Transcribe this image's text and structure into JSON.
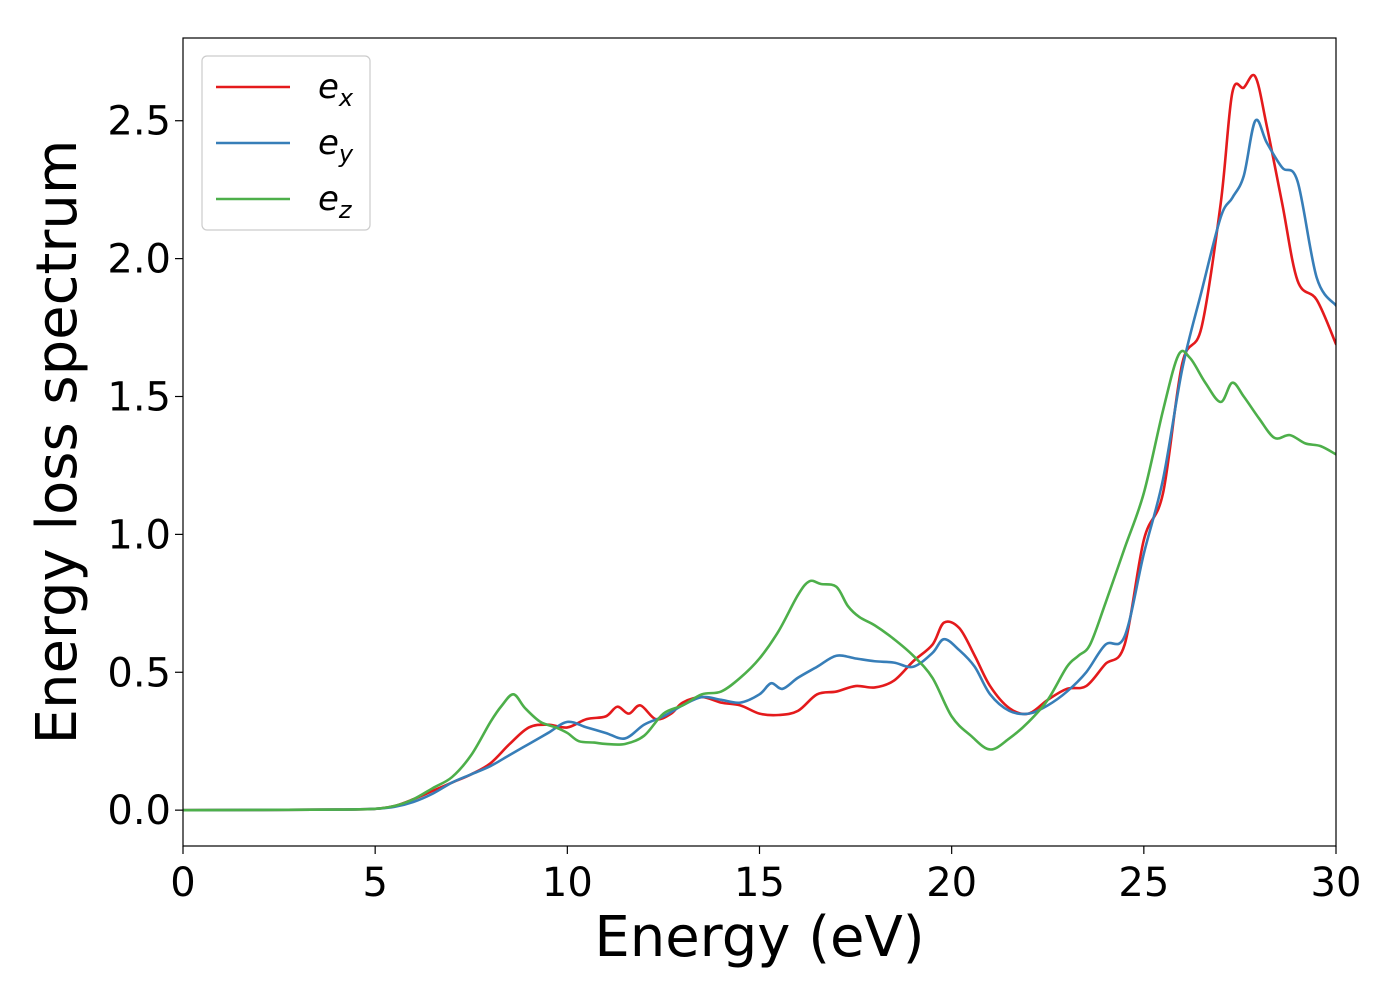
{
  "chart_data": {
    "type": "line",
    "title": "",
    "xlabel": "Energy (eV)",
    "ylabel": "Energy loss spectrum",
    "xlim": [
      0,
      30
    ],
    "ylim": [
      -0.13,
      2.8
    ],
    "xticks": [
      0,
      5,
      10,
      15,
      20,
      25,
      30
    ],
    "xtick_labels": [
      "0",
      "5",
      "10",
      "15",
      "20",
      "25",
      "30"
    ],
    "yticks": [
      0.0,
      0.5,
      1.0,
      1.5,
      2.0,
      2.5
    ],
    "ytick_labels": [
      "0.0",
      "0.5",
      "1.0",
      "1.5",
      "2.0",
      "2.5"
    ],
    "grid": false,
    "legend_position": "top-left",
    "series": [
      {
        "name": "e_x",
        "label_base": "e",
        "label_sub": "x",
        "color": "#e41a1c",
        "x": [
          0,
          4,
          5,
          5.5,
          6,
          6.5,
          7,
          7.5,
          8,
          8.5,
          9,
          9.5,
          10,
          10.5,
          11,
          11.3,
          11.6,
          11.9,
          12.3,
          12.7,
          13,
          13.5,
          14,
          14.5,
          15,
          15.5,
          16,
          16.5,
          17,
          17.5,
          18,
          18.5,
          19,
          19.5,
          19.8,
          20.2,
          20.6,
          21,
          21.5,
          22,
          22.5,
          23,
          23.5,
          24,
          24.5,
          25,
          25.5,
          26,
          26.5,
          27,
          27.3,
          27.6,
          27.9,
          28.2,
          28.6,
          29,
          29.5,
          30
        ],
        "y": [
          0,
          0.002,
          0.005,
          0.015,
          0.04,
          0.07,
          0.1,
          0.13,
          0.17,
          0.24,
          0.3,
          0.31,
          0.3,
          0.33,
          0.34,
          0.375,
          0.35,
          0.38,
          0.33,
          0.35,
          0.39,
          0.41,
          0.39,
          0.38,
          0.35,
          0.345,
          0.36,
          0.42,
          0.43,
          0.45,
          0.445,
          0.47,
          0.54,
          0.6,
          0.68,
          0.66,
          0.56,
          0.45,
          0.37,
          0.35,
          0.4,
          0.44,
          0.45,
          0.53,
          0.6,
          0.98,
          1.15,
          1.62,
          1.75,
          2.2,
          2.6,
          2.62,
          2.66,
          2.48,
          2.2,
          1.92,
          1.85,
          1.69
        ]
      },
      {
        "name": "e_y",
        "label_base": "e",
        "label_sub": "y",
        "color": "#377eb8",
        "x": [
          0,
          4,
          5,
          5.5,
          6,
          6.5,
          7,
          7.5,
          8,
          8.5,
          9,
          9.5,
          10,
          10.5,
          11,
          11.5,
          12,
          12.5,
          13,
          13.5,
          14,
          14.5,
          15,
          15.3,
          15.6,
          16,
          16.5,
          17,
          17.5,
          18,
          18.5,
          19,
          19.5,
          19.8,
          20.2,
          20.6,
          21,
          21.5,
          22,
          22.5,
          23,
          23.5,
          24,
          24.5,
          25,
          25.5,
          26,
          26.5,
          27,
          27.3,
          27.6,
          27.9,
          28.2,
          28.6,
          29,
          29.5,
          30
        ],
        "y": [
          0,
          0.002,
          0.005,
          0.012,
          0.03,
          0.06,
          0.1,
          0.13,
          0.16,
          0.2,
          0.24,
          0.28,
          0.32,
          0.3,
          0.28,
          0.26,
          0.31,
          0.34,
          0.38,
          0.41,
          0.4,
          0.39,
          0.42,
          0.46,
          0.44,
          0.48,
          0.52,
          0.56,
          0.55,
          0.54,
          0.535,
          0.52,
          0.57,
          0.62,
          0.58,
          0.52,
          0.42,
          0.36,
          0.35,
          0.38,
          0.43,
          0.5,
          0.6,
          0.63,
          0.93,
          1.2,
          1.6,
          1.88,
          2.15,
          2.22,
          2.3,
          2.5,
          2.42,
          2.33,
          2.28,
          1.93,
          1.83
        ]
      },
      {
        "name": "e_z",
        "label_base": "e",
        "label_sub": "z",
        "color": "#4daf4a",
        "x": [
          0,
          4,
          5,
          5.5,
          6,
          6.5,
          7,
          7.5,
          8,
          8.3,
          8.6,
          8.9,
          9.3,
          9.7,
          10,
          10.3,
          10.7,
          11,
          11.5,
          12,
          12.5,
          13,
          13.5,
          14,
          14.5,
          15,
          15.5,
          16,
          16.3,
          16.6,
          17,
          17.3,
          17.6,
          18,
          18.5,
          19,
          19.5,
          20,
          20.5,
          21,
          21.5,
          22,
          22.5,
          23,
          23.3,
          23.6,
          24,
          24.5,
          25,
          25.5,
          25.9,
          26.2,
          26.6,
          27,
          27.3,
          27.6,
          28,
          28.4,
          28.8,
          29.2,
          29.6,
          30
        ],
        "y": [
          0,
          0.002,
          0.005,
          0.015,
          0.04,
          0.08,
          0.12,
          0.2,
          0.32,
          0.38,
          0.42,
          0.37,
          0.32,
          0.3,
          0.28,
          0.25,
          0.245,
          0.24,
          0.24,
          0.27,
          0.35,
          0.38,
          0.42,
          0.43,
          0.48,
          0.55,
          0.65,
          0.78,
          0.83,
          0.82,
          0.81,
          0.74,
          0.7,
          0.67,
          0.62,
          0.56,
          0.48,
          0.34,
          0.27,
          0.22,
          0.26,
          0.32,
          0.4,
          0.52,
          0.56,
          0.6,
          0.75,
          0.95,
          1.15,
          1.45,
          1.65,
          1.64,
          1.55,
          1.48,
          1.55,
          1.5,
          1.42,
          1.35,
          1.36,
          1.33,
          1.32,
          1.29
        ]
      }
    ]
  }
}
